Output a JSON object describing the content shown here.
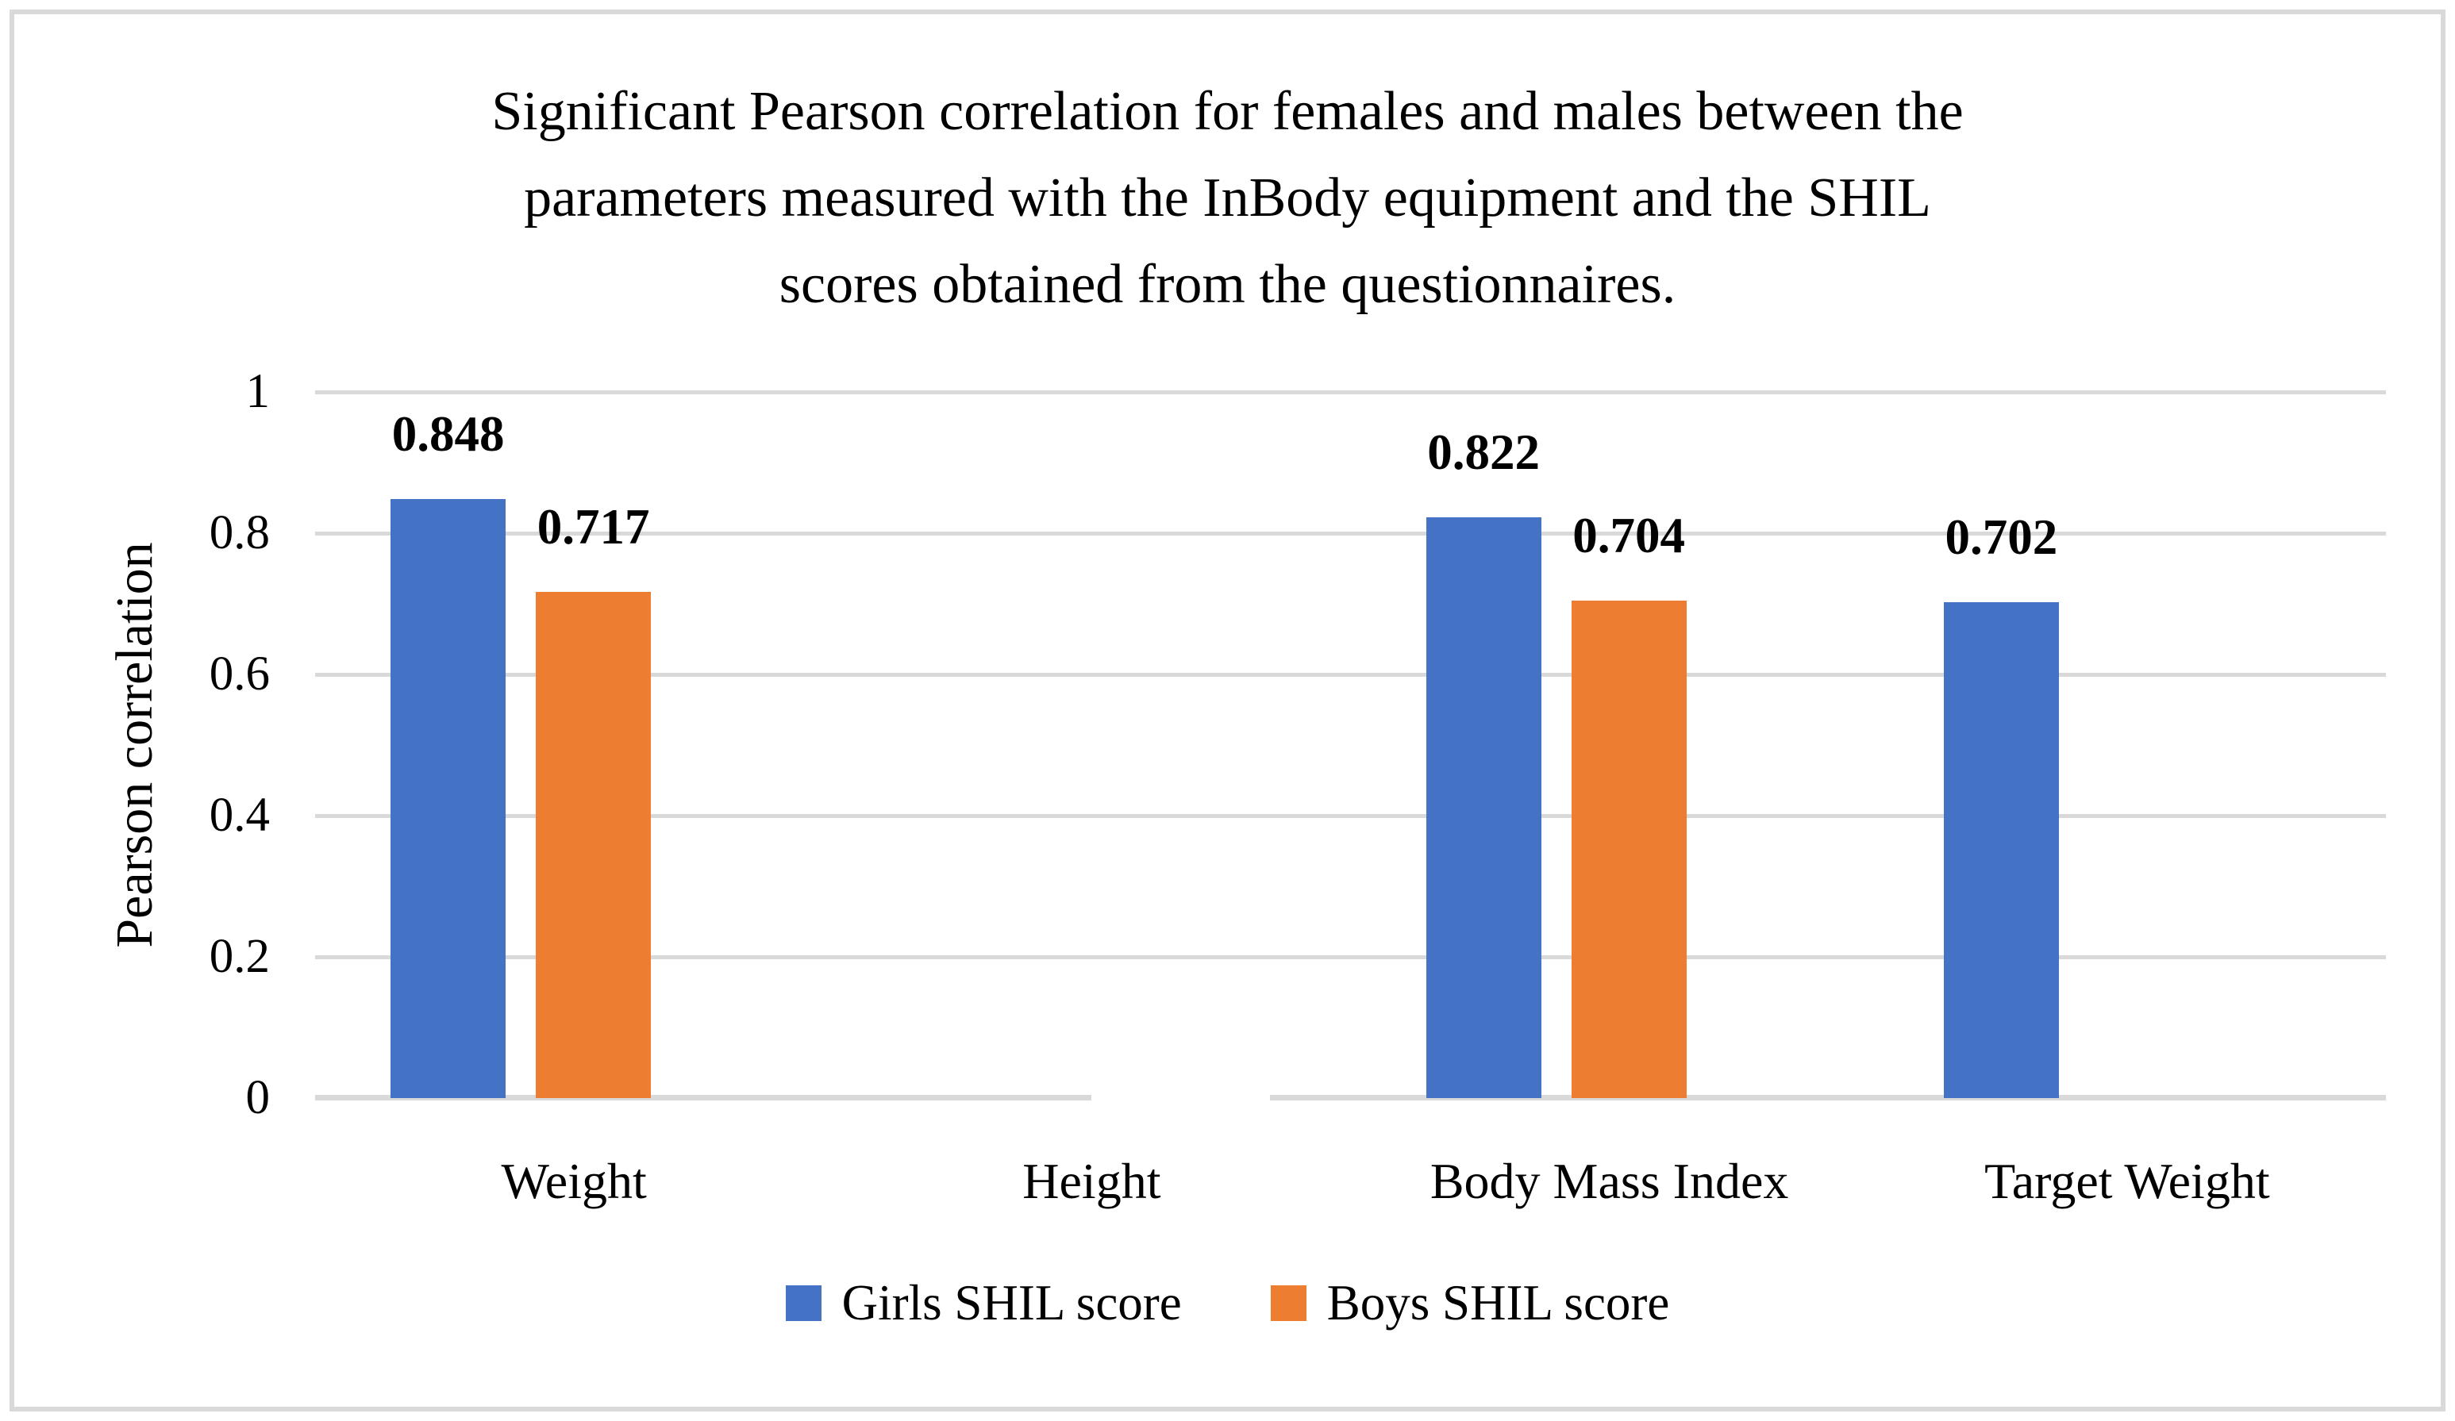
{
  "chart_data": {
    "type": "bar",
    "title": "Significant Pearson correlation for females and males between the parameters measured with the InBody equipment and the SHIL scores obtained from the questionnaires.",
    "title_lines": [
      "Significant Pearson correlation for females and males between the",
      "parameters measured with the InBody equipment and the SHIL",
      "scores obtained from the questionnaires."
    ],
    "xlabel": "",
    "ylabel": "Pearson correlation",
    "ylim": [
      0,
      1
    ],
    "yticks": [
      0,
      0.2,
      0.4,
      0.6,
      0.8,
      1
    ],
    "ytick_labels": [
      "0",
      "0.2",
      "0.4",
      "0.6",
      "0.8",
      "1"
    ],
    "grid": true,
    "legend_position": "bottom-center",
    "categories": [
      "Weight",
      "Height",
      "Body Mass Index",
      "Target Weight"
    ],
    "series": [
      {
        "name": "Girls SHIL score",
        "color": "#4472C4",
        "values": [
          0.848,
          null,
          0.822,
          0.702
        ],
        "labels": [
          "0.848",
          "",
          "0.822",
          "0.702"
        ]
      },
      {
        "name": "Boys SHIL score",
        "color": "#ED7D31",
        "values": [
          0.717,
          null,
          0.704,
          null
        ],
        "labels": [
          "0.717",
          "",
          "0.704",
          ""
        ]
      }
    ]
  },
  "styles": {
    "girls_color": "#4472C4",
    "boys_color": "#ED7D31",
    "gridline_color": "#D9D9D9",
    "frame_border_color": "#D9D9D9",
    "text_color": "#000000",
    "background_color": "#FFFFFF"
  }
}
